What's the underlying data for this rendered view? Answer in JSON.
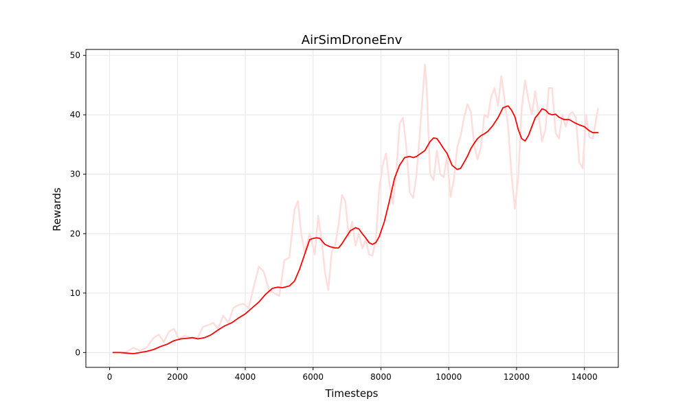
{
  "chart_data": {
    "type": "line",
    "title": "AirSimDroneEnv",
    "xlabel": "Timesteps",
    "ylabel": "Rewards",
    "xlim": [
      -700,
      15000
    ],
    "ylim": [
      -2.5,
      51
    ],
    "xticks": [
      0,
      2000,
      4000,
      6000,
      8000,
      10000,
      12000,
      14000
    ],
    "yticks": [
      0,
      10,
      20,
      30,
      40,
      50
    ],
    "grid": true,
    "series": [
      {
        "color": "#ffdddd",
        "style": "raw",
        "x": [
          100,
          300,
          500,
          700,
          900,
          1100,
          1300,
          1450,
          1600,
          1750,
          1900,
          2050,
          2200,
          2400,
          2600,
          2750,
          2900,
          3050,
          3200,
          3350,
          3500,
          3650,
          3800,
          3950,
          4100,
          4250,
          4400,
          4550,
          4700,
          4850,
          5000,
          5150,
          5300,
          5450,
          5550,
          5650,
          5750,
          5900,
          6050,
          6150,
          6250,
          6350,
          6450,
          6550,
          6650,
          6750,
          6850,
          6950,
          7050,
          7150,
          7250,
          7350,
          7450,
          7550,
          7650,
          7750,
          7850,
          7950,
          8050,
          8150,
          8250,
          8350,
          8450,
          8550,
          8650,
          8750,
          8850,
          8950,
          9050,
          9150,
          9250,
          9300,
          9350,
          9450,
          9550,
          9650,
          9750,
          9850,
          9950,
          10050,
          10150,
          10250,
          10350,
          10450,
          10550,
          10650,
          10750,
          10850,
          10950,
          11050,
          11150,
          11250,
          11350,
          11450,
          11550,
          11650,
          11750,
          11850,
          11950,
          12050,
          12150,
          12250,
          12350,
          12450,
          12550,
          12650,
          12750,
          12850,
          12950,
          13050,
          13150,
          13250,
          13350,
          13450,
          13550,
          13650,
          13750,
          13850,
          13950,
          14050,
          14150,
          14250,
          14400
        ],
        "y": [
          0,
          0,
          0.1,
          0.8,
          0.3,
          0.9,
          2.5,
          3,
          1.8,
          3.5,
          4,
          2.2,
          2.8,
          2.5,
          2.5,
          4.3,
          4.6,
          5,
          4,
          6.2,
          5,
          7.5,
          8,
          8.2,
          7.5,
          11,
          14.5,
          13.5,
          10.5,
          10,
          9.5,
          15.5,
          16,
          24,
          25.5,
          20,
          17,
          20,
          16.5,
          23,
          19,
          13.5,
          10.5,
          17,
          18,
          21.5,
          26.5,
          25.5,
          19.5,
          22,
          18,
          20,
          17.5,
          19,
          16.5,
          16.3,
          19,
          27.5,
          31.5,
          33.5,
          28.5,
          25,
          30,
          38.5,
          39.5,
          34.5,
          27,
          26,
          30,
          37,
          45,
          48.5,
          44.5,
          30,
          29,
          34,
          30,
          29.5,
          33,
          26.2,
          29,
          34.5,
          36.5,
          39.5,
          41.8,
          40.5,
          35,
          32.5,
          34.5,
          40,
          39.5,
          43,
          44.5,
          41.5,
          46.5,
          42.5,
          38,
          30,
          24.2,
          29.5,
          41,
          45.8,
          42.5,
          40,
          44,
          40,
          35.5,
          37.5,
          44.5,
          44.5,
          37,
          36,
          40,
          38,
          40,
          40.5,
          39.5,
          32,
          31,
          40,
          36.2,
          36,
          41
        ]
      },
      {
        "color": "#ff0000",
        "style": "smoothed",
        "x": [
          100,
          300,
          500,
          700,
          900,
          1100,
          1300,
          1500,
          1700,
          1900,
          2100,
          2300,
          2450,
          2600,
          2800,
          3000,
          3200,
          3400,
          3600,
          3800,
          4000,
          4200,
          4400,
          4600,
          4800,
          4950,
          5100,
          5300,
          5450,
          5600,
          5750,
          5900,
          6000,
          6100,
          6200,
          6350,
          6500,
          6650,
          6750,
          6850,
          6950,
          7100,
          7250,
          7350,
          7450,
          7550,
          7650,
          7750,
          7850,
          7950,
          8100,
          8250,
          8400,
          8550,
          8700,
          8850,
          8950,
          9050,
          9150,
          9300,
          9450,
          9550,
          9650,
          9750,
          9850,
          9950,
          10100,
          10250,
          10350,
          10450,
          10550,
          10650,
          10750,
          10850,
          10950,
          11050,
          11150,
          11300,
          11450,
          11600,
          11750,
          11850,
          11950,
          12050,
          12150,
          12250,
          12350,
          12450,
          12550,
          12650,
          12750,
          12850,
          12950,
          13050,
          13150,
          13250,
          13400,
          13550,
          13700,
          13850,
          14000,
          14150,
          14250,
          14400
        ],
        "y": [
          0,
          0,
          -0.1,
          -0.2,
          0,
          0.2,
          0.5,
          1,
          1.4,
          2,
          2.3,
          2.4,
          2.5,
          2.3,
          2.5,
          3,
          3.8,
          4.5,
          5,
          5.8,
          6.5,
          7.5,
          8.5,
          9.8,
          10.8,
          11,
          10.9,
          11.2,
          12,
          14,
          16.5,
          19,
          19.2,
          19.3,
          19.2,
          18.2,
          17.8,
          17.6,
          17.6,
          18.3,
          19.2,
          20.5,
          21,
          20.8,
          20,
          19.3,
          18.5,
          18.2,
          18.5,
          19.5,
          22,
          25.5,
          29.3,
          31.5,
          32.8,
          33,
          32.8,
          33,
          33.4,
          34,
          35.5,
          36.1,
          36,
          35.2,
          34.3,
          33.5,
          31.5,
          30.8,
          31,
          32,
          33,
          34.3,
          35.2,
          36,
          36.5,
          36.8,
          37.2,
          38.2,
          39.5,
          41.2,
          41.5,
          40.8,
          39.7,
          37.5,
          36,
          35.6,
          36.5,
          38,
          39.5,
          40.2,
          41,
          40.8,
          40.2,
          40,
          40.1,
          39.6,
          39.2,
          39.2,
          38.7,
          38.3,
          38,
          37.3,
          37,
          37
        ]
      }
    ]
  }
}
